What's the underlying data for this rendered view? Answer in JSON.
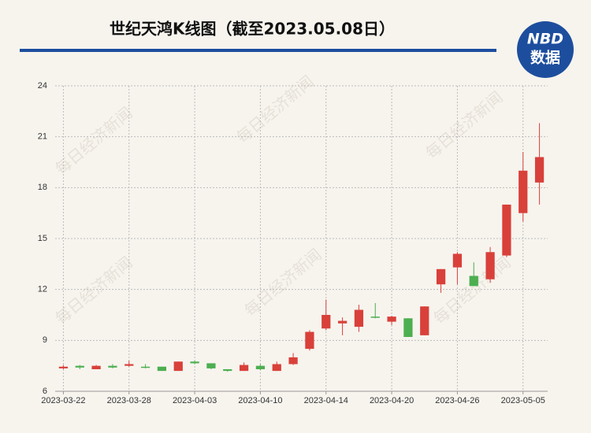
{
  "chart_data": {
    "type": "candlestick",
    "title": "世纪天鸿K线图（截至2023.05.08日）",
    "logo": {
      "top": "NBD",
      "bottom": "数据"
    },
    "watermark": "每日经济新闻",
    "categories": [
      "2023-03-22",
      null,
      null,
      null,
      "2023-03-28",
      null,
      null,
      null,
      "2023-04-03",
      null,
      null,
      null,
      "2023-04-10",
      null,
      null,
      null,
      "2023-04-14",
      null,
      null,
      null,
      "2023-04-20",
      null,
      null,
      null,
      "2023-04-26",
      null,
      null,
      null,
      "2023-05-05",
      null
    ],
    "open": [
      7.35,
      7.5,
      7.3,
      7.5,
      7.5,
      7.45,
      7.45,
      7.2,
      7.75,
      7.65,
      7.3,
      7.2,
      7.5,
      7.2,
      7.6,
      8.5,
      9.7,
      10.0,
      9.8,
      10.4,
      10.1,
      10.3,
      9.3,
      12.3,
      13.3,
      12.8,
      12.6,
      14.0,
      16.5,
      18.3
    ],
    "high": [
      7.55,
      7.55,
      7.55,
      7.6,
      7.8,
      7.6,
      7.45,
      7.75,
      7.8,
      7.65,
      7.3,
      7.7,
      7.6,
      7.75,
      8.25,
      9.6,
      11.4,
      10.35,
      11.1,
      11.2,
      10.45,
      10.3,
      11.0,
      13.2,
      14.2,
      13.6,
      14.5,
      17.0,
      20.1,
      21.8
    ],
    "low": [
      7.3,
      7.3,
      7.3,
      7.35,
      7.45,
      7.35,
      7.2,
      7.2,
      7.6,
      7.3,
      7.15,
      7.2,
      7.25,
      7.2,
      7.55,
      8.4,
      9.6,
      9.3,
      9.5,
      10.3,
      9.9,
      9.2,
      9.3,
      11.8,
      12.3,
      12.2,
      12.4,
      13.9,
      16.0,
      17.0
    ],
    "close": [
      7.45,
      7.4,
      7.5,
      7.4,
      7.6,
      7.4,
      7.2,
      7.75,
      7.65,
      7.35,
      7.2,
      7.55,
      7.3,
      7.6,
      8.0,
      9.5,
      10.5,
      10.15,
      10.8,
      10.35,
      10.4,
      9.2,
      11.0,
      13.2,
      14.1,
      12.2,
      14.2,
      17.0,
      19.0,
      19.8
    ],
    "up_color": "#d9403a",
    "down_color": "#4caf50",
    "ylim": [
      6,
      24
    ],
    "yticks": [
      6,
      9,
      12,
      15,
      18,
      21,
      24
    ],
    "grid": true
  }
}
